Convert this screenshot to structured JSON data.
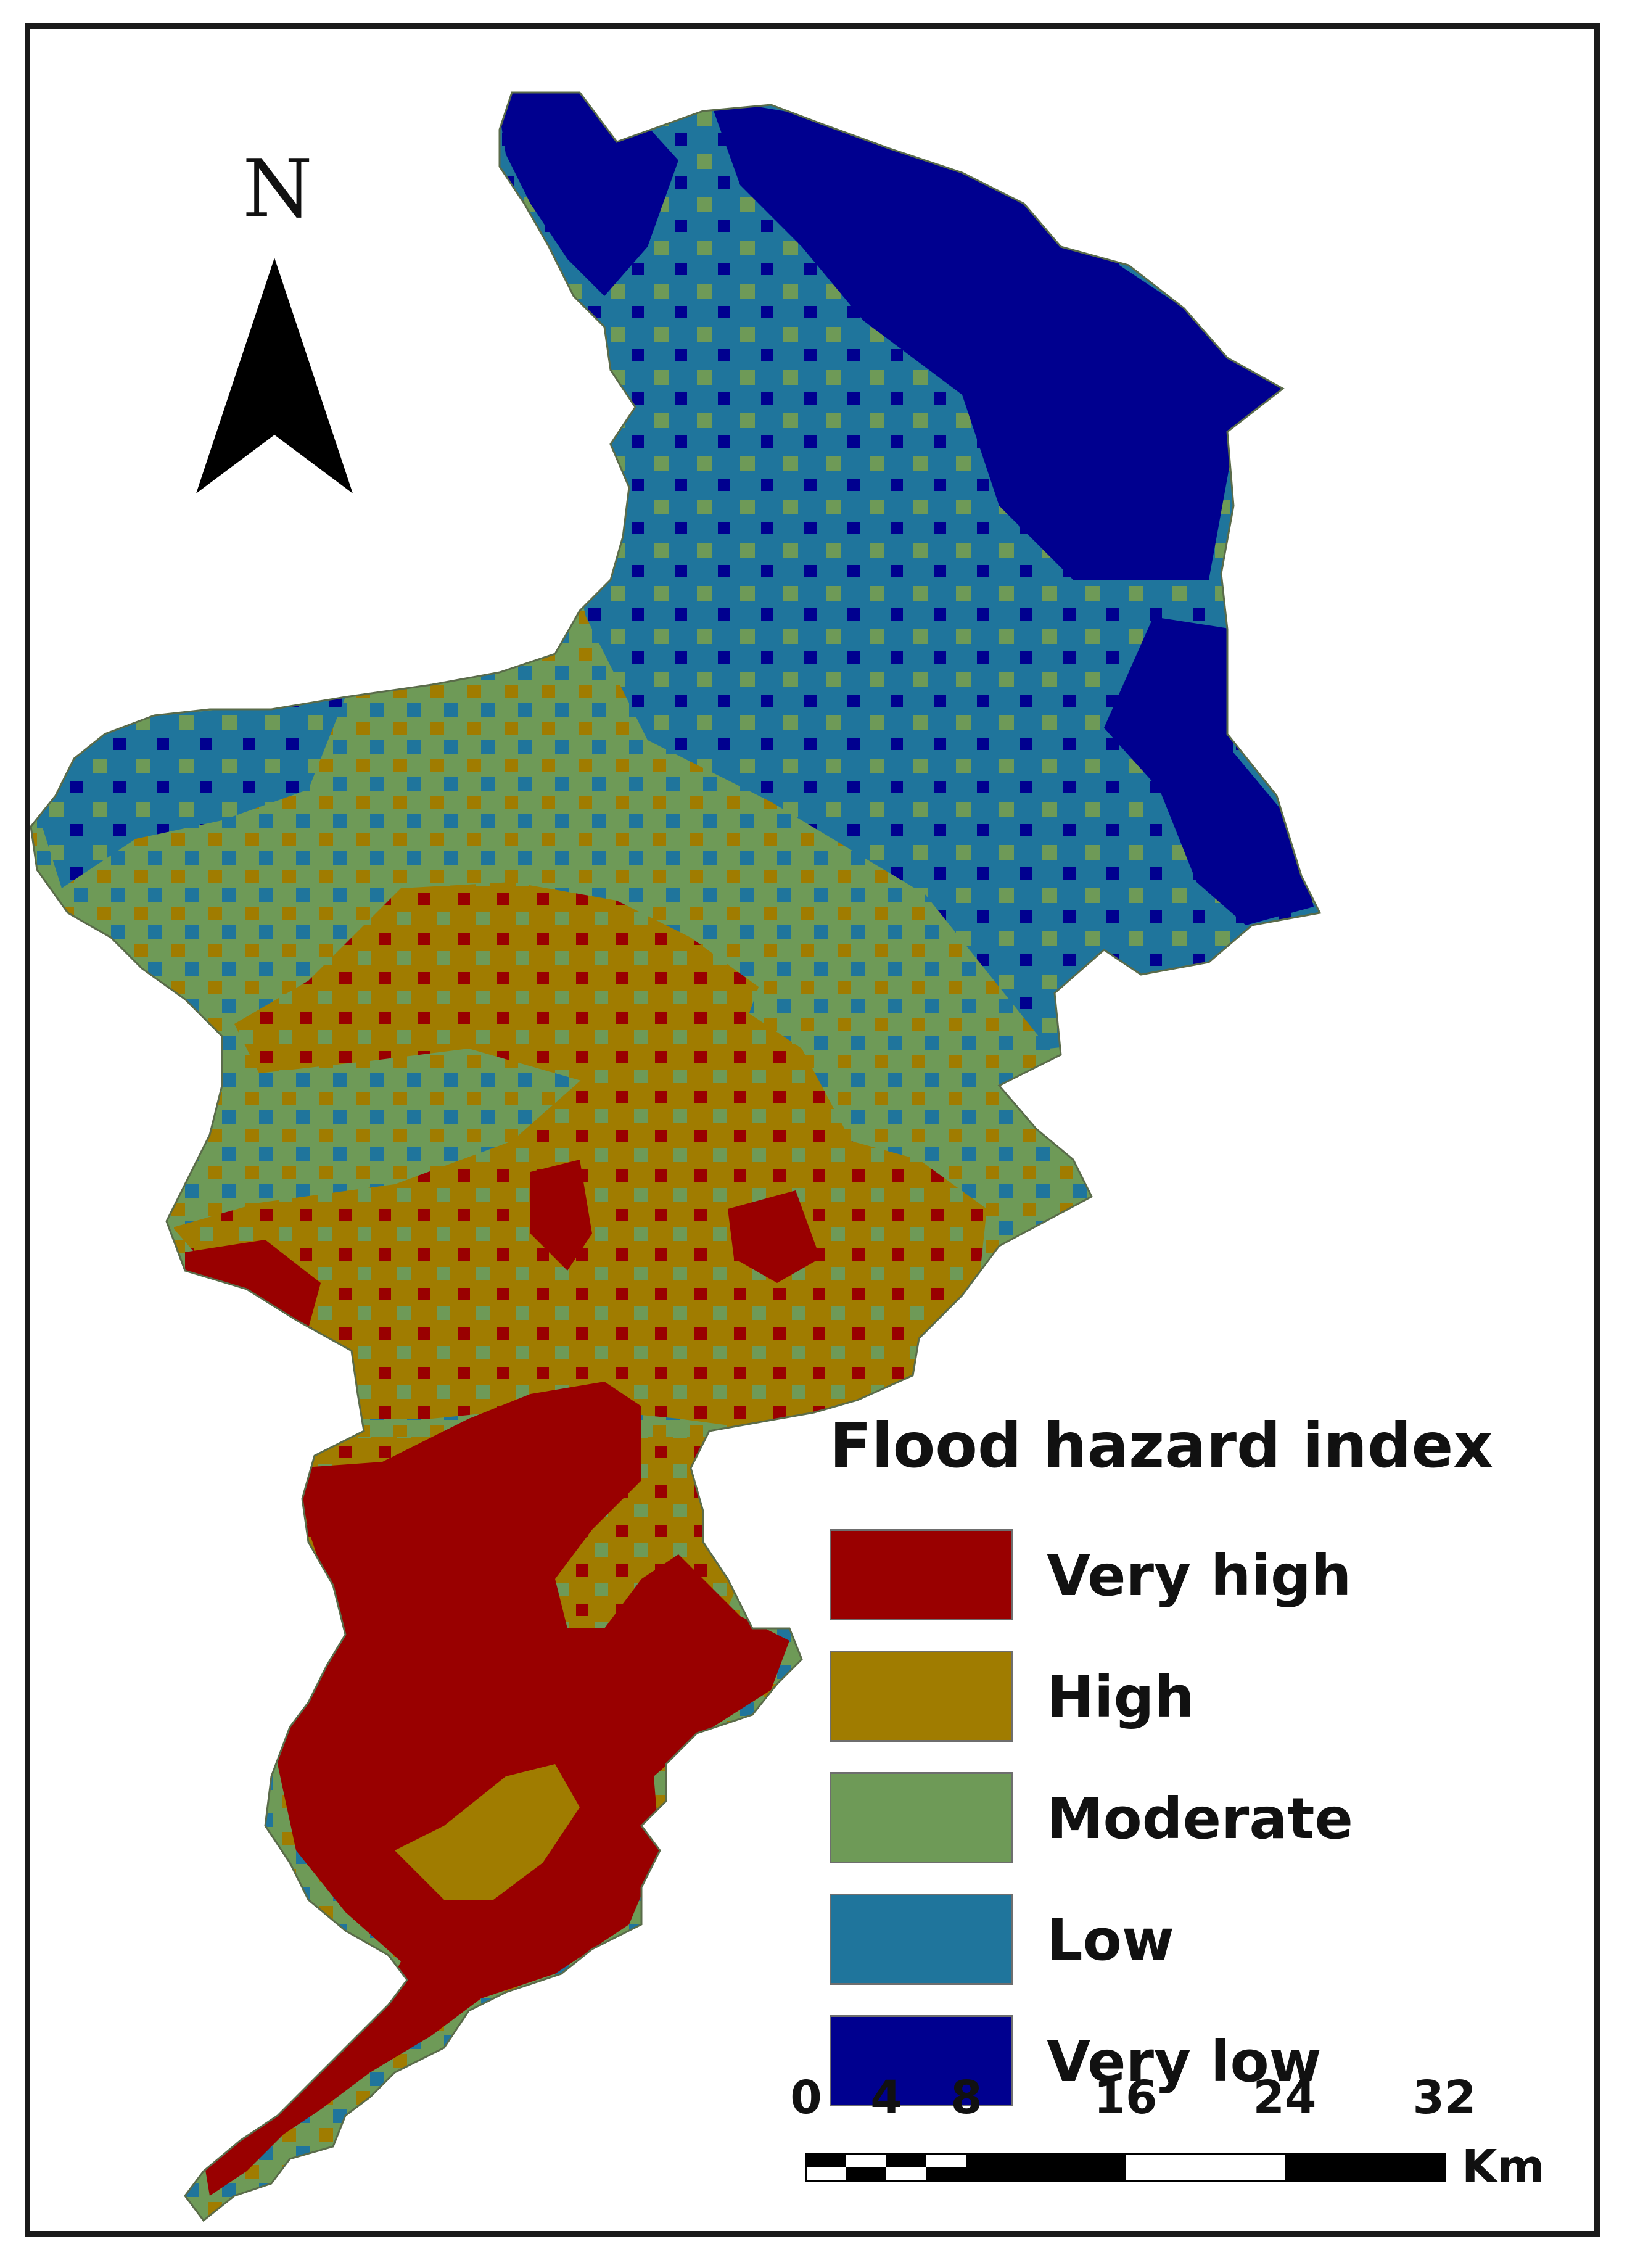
{
  "north_arrow": {
    "label": "N"
  },
  "legend": {
    "title": "Flood hazard index",
    "items": [
      {
        "label": "Very high",
        "color": "#990000"
      },
      {
        "label": "High",
        "color": "#a07c00"
      },
      {
        "label": "Moderate",
        "color": "#6e9a57"
      },
      {
        "label": "Low",
        "color": "#1f759c"
      },
      {
        "label": "Very low",
        "color": "#00008f"
      }
    ]
  },
  "scale_bar": {
    "ticks": [
      "0",
      "4",
      "8",
      "16",
      "24",
      "32"
    ],
    "unit": "Km"
  }
}
